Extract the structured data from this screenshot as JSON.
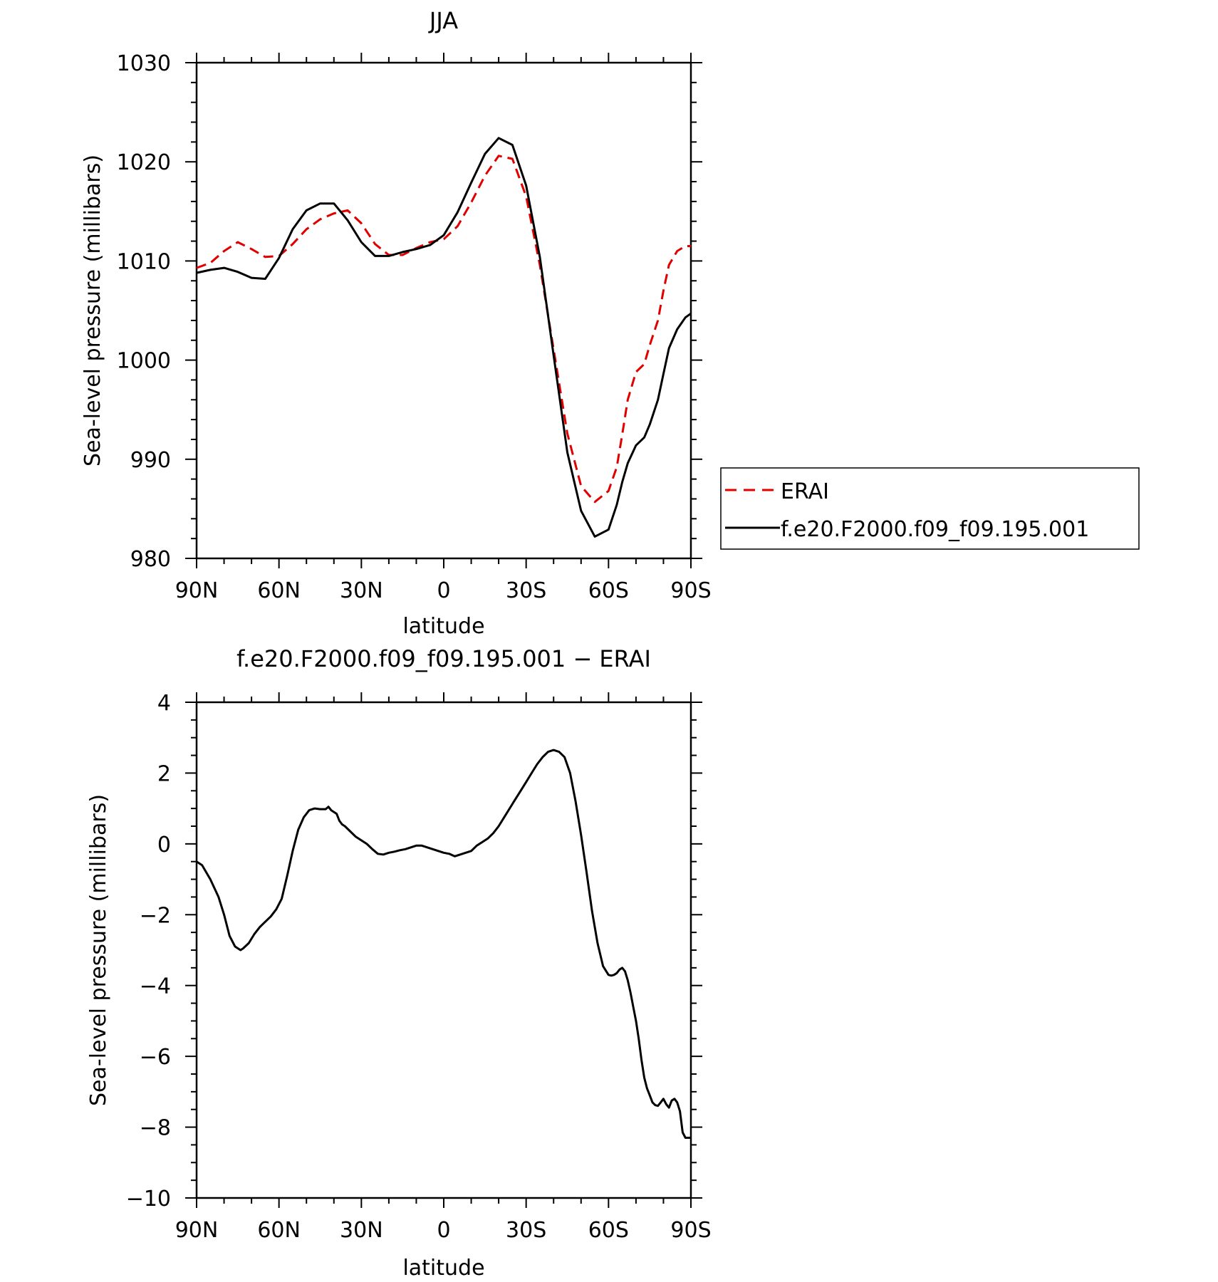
{
  "chart_data": [
    {
      "type": "line",
      "title": "JJA",
      "xlabel": "latitude",
      "ylabel": "Sea-level pressure (millibars)",
      "xlim": [
        90,
        -90
      ],
      "ylim": [
        980,
        1030
      ],
      "xticks": [
        90,
        60,
        30,
        0,
        -30,
        -60,
        -90
      ],
      "xtick_labels": [
        "90N",
        "60N",
        "30N",
        "0",
        "30S",
        "60S",
        "90S"
      ],
      "yticks": [
        980,
        990,
        1000,
        1010,
        1020,
        1030
      ],
      "ytick_labels": [
        "980",
        "990",
        "1000",
        "1010",
        "1020",
        "1030"
      ],
      "grid": false,
      "legend": "right",
      "series": [
        {
          "name": "ERAI",
          "color": "#e00000",
          "dash": "dashed",
          "x": [
            90,
            85,
            80,
            75,
            70,
            65,
            60,
            55,
            50,
            45,
            40,
            35,
            30,
            25,
            20,
            15,
            10,
            5,
            0,
            -5,
            -10,
            -15,
            -20,
            -25,
            -30,
            -35,
            -40,
            -45,
            -50,
            -55,
            -60,
            -63,
            -65,
            -67,
            -70,
            -73,
            -75,
            -78,
            -80,
            -82,
            -85,
            -88,
            -90
          ],
          "y": [
            1009.3,
            1009.8,
            1011.0,
            1011.9,
            1011.2,
            1010.4,
            1010.5,
            1011.7,
            1013.2,
            1014.2,
            1014.8,
            1015.1,
            1013.8,
            1011.7,
            1010.6,
            1010.6,
            1011.3,
            1011.9,
            1012.2,
            1013.5,
            1015.9,
            1018.6,
            1020.6,
            1020.3,
            1016.5,
            1009.6,
            1001.1,
            992.6,
            987.3,
            985.7,
            986.8,
            989.2,
            992.5,
            996.0,
            998.8,
            999.6,
            1001.5,
            1004.0,
            1007.0,
            1009.6,
            1011.0,
            1011.5,
            1011.5
          ]
        },
        {
          "name": "f.e20.F2000.f09_f09.195.001",
          "color": "#000000",
          "dash": "solid",
          "x": [
            90,
            85,
            80,
            75,
            70,
            65,
            60,
            55,
            50,
            45,
            40,
            35,
            30,
            25,
            20,
            15,
            10,
            5,
            0,
            -5,
            -10,
            -15,
            -20,
            -25,
            -30,
            -35,
            -40,
            -45,
            -50,
            -55,
            -60,
            -63,
            -65,
            -67,
            -70,
            -73,
            -75,
            -78,
            -80,
            -82,
            -85,
            -88,
            -90
          ],
          "y": [
            1008.8,
            1009.1,
            1009.3,
            1008.9,
            1008.3,
            1008.2,
            1010.3,
            1013.2,
            1015.1,
            1015.8,
            1015.8,
            1014.1,
            1011.9,
            1010.5,
            1010.5,
            1010.9,
            1011.2,
            1011.6,
            1012.6,
            1014.9,
            1017.9,
            1020.8,
            1022.4,
            1021.7,
            1017.6,
            1010.4,
            1000.5,
            990.7,
            984.8,
            982.2,
            982.9,
            985.4,
            987.7,
            989.6,
            991.4,
            992.2,
            993.5,
            996.0,
            998.6,
            1001.2,
            1003.1,
            1004.3,
            1004.7
          ]
        }
      ]
    },
    {
      "type": "line",
      "title": "f.e20.F2000.f09_f09.195.001 − ERAI",
      "xlabel": "latitude",
      "ylabel": "Sea-level pressure (millibars)",
      "xlim": [
        90,
        -90
      ],
      "ylim": [
        -10,
        4
      ],
      "xticks": [
        90,
        60,
        30,
        0,
        -30,
        -60,
        -90
      ],
      "xtick_labels": [
        "90N",
        "60N",
        "30N",
        "0",
        "30S",
        "60S",
        "90S"
      ],
      "yticks": [
        -10,
        -8,
        -6,
        -4,
        -2,
        0,
        2,
        4
      ],
      "ytick_labels": [
        "−10",
        "−8",
        "−6",
        "−4",
        "−2",
        "0",
        "2",
        "4"
      ],
      "grid": false,
      "series": [
        {
          "color": "#000000",
          "dash": "solid",
          "x": [
            90,
            88,
            85,
            82,
            80,
            78,
            76,
            74,
            73,
            71,
            69,
            67,
            65,
            63,
            61,
            59,
            57,
            55,
            53,
            51,
            49,
            47,
            45,
            43,
            42,
            41,
            40,
            39,
            38,
            37,
            36,
            34,
            32,
            30,
            28,
            26,
            24,
            22,
            20,
            18,
            16,
            14,
            12,
            10,
            8,
            6,
            4,
            2,
            0,
            -2,
            -4,
            -6,
            -8,
            -10,
            -12,
            -14,
            -16,
            -18,
            -20,
            -22,
            -24,
            -26,
            -28,
            -30,
            -32,
            -34,
            -36,
            -38,
            -40,
            -42,
            -44,
            -46,
            -48,
            -50,
            -52,
            -54,
            -56,
            -58,
            -60,
            -61,
            -62,
            -63,
            -64,
            -65,
            -66,
            -67,
            -68,
            -69,
            -70,
            -71,
            -72,
            -73,
            -74,
            -75,
            -76,
            -77,
            -78,
            -79,
            -80,
            -81,
            -82,
            -83,
            -84,
            -85,
            -86,
            -87,
            -88,
            -89,
            -90
          ],
          "y": [
            -0.5,
            -0.6,
            -1.0,
            -1.5,
            -2.0,
            -2.6,
            -2.9,
            -3.0,
            -2.95,
            -2.8,
            -2.55,
            -2.35,
            -2.2,
            -2.05,
            -1.85,
            -1.55,
            -0.9,
            -0.2,
            0.4,
            0.75,
            0.95,
            1.0,
            0.98,
            0.98,
            1.05,
            0.95,
            0.9,
            0.85,
            0.65,
            0.55,
            0.5,
            0.35,
            0.2,
            0.1,
            0.0,
            -0.15,
            -0.28,
            -0.3,
            -0.25,
            -0.22,
            -0.18,
            -0.15,
            -0.1,
            -0.05,
            -0.05,
            -0.1,
            -0.15,
            -0.2,
            -0.25,
            -0.28,
            -0.35,
            -0.3,
            -0.25,
            -0.2,
            -0.05,
            0.05,
            0.15,
            0.3,
            0.5,
            0.75,
            1.0,
            1.25,
            1.5,
            1.75,
            2.0,
            2.25,
            2.45,
            2.6,
            2.65,
            2.6,
            2.45,
            2.0,
            1.2,
            0.25,
            -0.8,
            -1.9,
            -2.8,
            -3.45,
            -3.7,
            -3.72,
            -3.7,
            -3.65,
            -3.55,
            -3.5,
            -3.6,
            -3.85,
            -4.2,
            -4.6,
            -5.0,
            -5.5,
            -6.1,
            -6.6,
            -6.9,
            -7.1,
            -7.3,
            -7.38,
            -7.4,
            -7.3,
            -7.2,
            -7.35,
            -7.45,
            -7.25,
            -7.2,
            -7.3,
            -7.55,
            -8.15,
            -8.3,
            -8.3,
            -8.3
          ]
        }
      ]
    }
  ],
  "legend": {
    "items": [
      {
        "label": "ERAI",
        "color": "#e00000",
        "dash": "dashed"
      },
      {
        "label": "f.e20.F2000.f09_f09.195.001",
        "color": "#000000",
        "dash": "solid"
      }
    ]
  }
}
